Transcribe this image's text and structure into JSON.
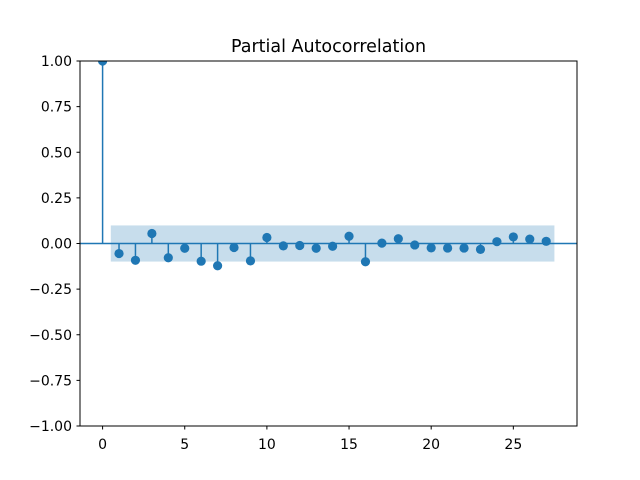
{
  "title": "Partial Autocorrelation",
  "colors": {
    "accent": "#1f77b4",
    "band_fill": "rgba(31,119,180,0.25)",
    "spine": "#000000",
    "background": "#ffffff",
    "text": "#000000"
  },
  "chart_data": {
    "type": "stem",
    "title": "Partial Autocorrelation",
    "xlabel": "",
    "ylabel": "",
    "grid": false,
    "legend": null,
    "xlim": [
      -1.375,
      28.875
    ],
    "ylim": [
      -1.0,
      1.0
    ],
    "xticks": [
      0,
      5,
      10,
      15,
      20,
      25
    ],
    "xtick_labels": [
      "0",
      "5",
      "10",
      "15",
      "20",
      "25"
    ],
    "yticks": [
      1.0,
      0.75,
      0.5,
      0.25,
      0.0,
      -0.25,
      -0.5,
      -0.75,
      -1.0
    ],
    "ytick_labels": [
      "1.00",
      "0.75",
      "0.50",
      "0.25",
      "0.00",
      "−0.25",
      "−0.50",
      "−0.75",
      "−1.00"
    ],
    "x": [
      0,
      1,
      2,
      3,
      4,
      5,
      6,
      7,
      8,
      9,
      10,
      11,
      12,
      13,
      14,
      15,
      16,
      17,
      18,
      19,
      20,
      21,
      22,
      23,
      24,
      25,
      26,
      27
    ],
    "values": [
      1.0,
      -0.055,
      -0.092,
      0.055,
      -0.078,
      -0.026,
      -0.097,
      -0.122,
      -0.022,
      -0.095,
      0.033,
      -0.013,
      -0.011,
      -0.026,
      -0.015,
      0.04,
      -0.1,
      0.002,
      0.026,
      -0.008,
      -0.024,
      -0.025,
      -0.025,
      -0.032,
      0.01,
      0.036,
      0.024,
      0.012
    ],
    "confidence_band": {
      "x_start": 0.5,
      "x_end": 27.5,
      "low": -0.099,
      "high": 0.099
    },
    "zero_line": 0.0
  }
}
